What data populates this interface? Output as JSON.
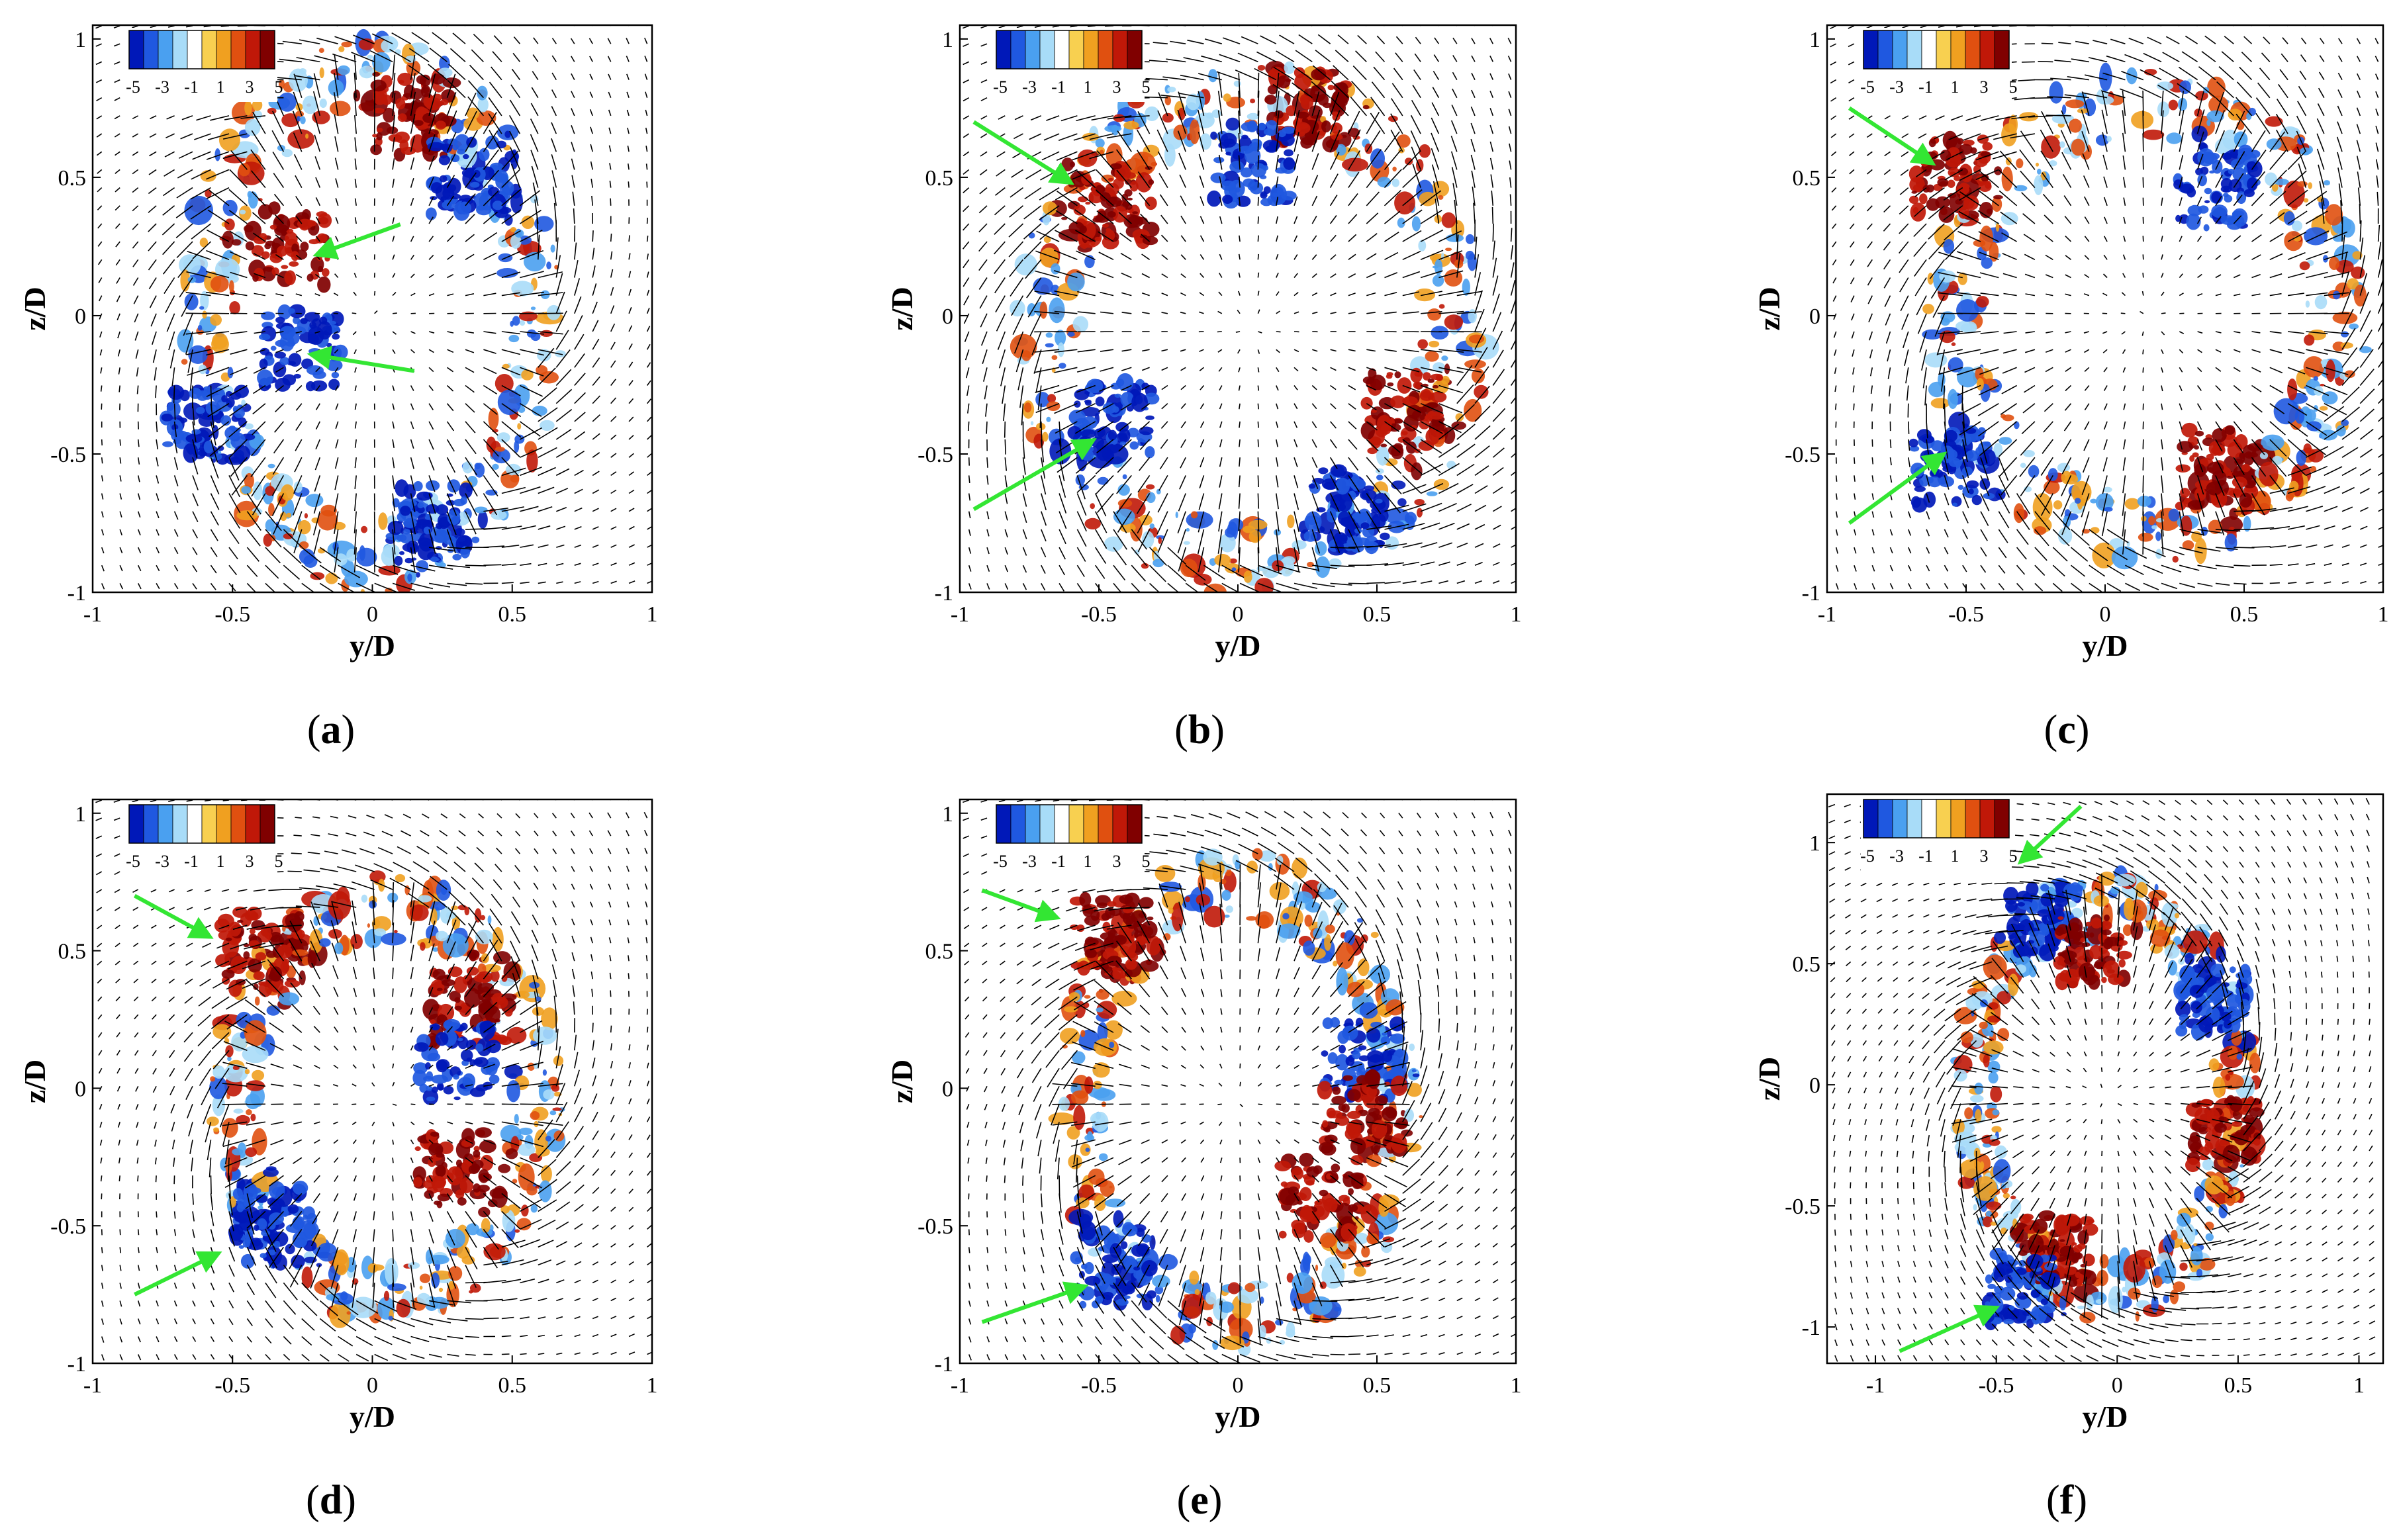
{
  "figure": {
    "colorbar": {
      "tick_labels": [
        "-5",
        "-3",
        "-1",
        "1",
        "3",
        "5"
      ],
      "colors": [
        "#0018b8",
        "#1f58e0",
        "#4aa0f0",
        "#a8dcf8",
        "#ffffff",
        "#f8d050",
        "#f0a020",
        "#e05010",
        "#c01808",
        "#800000"
      ]
    },
    "arrow_color": "#33e633",
    "vector_color": "#000000",
    "axis_labels": {
      "x": "y/D",
      "y": "z/D"
    }
  },
  "chart_data": [
    {
      "panel": "a",
      "label_open": "(",
      "label_letter": "a",
      "label_close": ")",
      "type": "vector-contour",
      "xlabel": "y/D",
      "ylabel": "z/D",
      "xlim": [
        -1,
        1
      ],
      "ylim": [
        -1,
        1.05
      ],
      "xticks": [
        -1,
        -0.5,
        0,
        0.5,
        1
      ],
      "xtick_labels": [
        "-1",
        "-0.5",
        "0",
        "0.5",
        "1"
      ],
      "yticks": [
        -1,
        -0.5,
        0,
        0.5,
        1
      ],
      "ytick_labels": [
        "-1",
        "-0.5",
        "0",
        "0.5",
        "1"
      ],
      "ring": {
        "center": [
          0.0,
          0.0
        ],
        "radius": [
          0.6,
          0.88
        ]
      },
      "vortex_blobs": [
        {
          "y": -0.3,
          "z": 0.25,
          "sign": 1
        },
        {
          "y": -0.25,
          "z": -0.12,
          "sign": -1
        },
        {
          "y": 0.15,
          "z": 0.72,
          "sign": 1
        },
        {
          "y": 0.2,
          "z": -0.75,
          "sign": -1
        },
        {
          "y": -0.6,
          "z": -0.4,
          "sign": -1
        },
        {
          "y": 0.35,
          "z": 0.5,
          "sign": -1
        }
      ],
      "annotation_arrows": [
        {
          "from": [
            0.1,
            0.33
          ],
          "to": [
            -0.2,
            0.22
          ]
        },
        {
          "from": [
            0.15,
            -0.2
          ],
          "to": [
            -0.22,
            -0.14
          ]
        }
      ]
    },
    {
      "panel": "b",
      "label_open": "(",
      "label_letter": "b",
      "label_close": ")",
      "type": "vector-contour",
      "xlabel": "y/D",
      "ylabel": "z/D",
      "xlim": [
        -1,
        1
      ],
      "ylim": [
        -1,
        1.05
      ],
      "xticks": [
        -1,
        -0.5,
        0,
        0.5,
        1
      ],
      "xtick_labels": [
        "-1",
        "-0.5",
        "0",
        "0.5",
        "1"
      ],
      "yticks": [
        -1,
        -0.5,
        0,
        0.5,
        1
      ],
      "ytick_labels": [
        "-1",
        "-0.5",
        "0",
        "0.5",
        "1"
      ],
      "ring": {
        "center": [
          0.05,
          -0.05
        ],
        "radius": [
          0.75,
          0.85
        ]
      },
      "vortex_blobs": [
        {
          "y": -0.45,
          "z": 0.4,
          "sign": 1
        },
        {
          "y": -0.45,
          "z": -0.38,
          "sign": -1
        },
        {
          "y": 0.25,
          "z": 0.75,
          "sign": 1
        },
        {
          "y": 0.4,
          "z": -0.7,
          "sign": -1
        },
        {
          "y": 0.05,
          "z": 0.55,
          "sign": -1
        },
        {
          "y": 0.6,
          "z": -0.35,
          "sign": 1
        }
      ],
      "annotation_arrows": [
        {
          "from": [
            -0.95,
            0.7
          ],
          "to": [
            -0.6,
            0.48
          ]
        },
        {
          "from": [
            -0.95,
            -0.7
          ],
          "to": [
            -0.52,
            -0.45
          ]
        }
      ]
    },
    {
      "panel": "c",
      "label_open": "(",
      "label_letter": "c",
      "label_close": ")",
      "type": "vector-contour",
      "xlabel": "y/D",
      "ylabel": "z/D",
      "xlim": [
        -1,
        1
      ],
      "ylim": [
        -1,
        1.05
      ],
      "xticks": [
        -1,
        -0.5,
        0,
        0.5,
        1
      ],
      "xtick_labels": [
        "-1",
        "-0.5",
        "0",
        "0.5",
        "1"
      ],
      "yticks": [
        -1,
        -0.5,
        0,
        0.5,
        1
      ],
      "ytick_labels": [
        "-1",
        "-0.5",
        "0",
        "0.5",
        "1"
      ],
      "ring": {
        "center": [
          0.15,
          0.0
        ],
        "radius": [
          0.7,
          0.78
        ]
      },
      "vortex_blobs": [
        {
          "y": -0.55,
          "z": 0.5,
          "sign": 1
        },
        {
          "y": -0.55,
          "z": -0.55,
          "sign": -1
        },
        {
          "y": 0.4,
          "z": 0.45,
          "sign": -1
        },
        {
          "y": 0.4,
          "z": -0.55,
          "sign": 1
        }
      ],
      "annotation_arrows": [
        {
          "from": [
            -0.92,
            0.75
          ],
          "to": [
            -0.62,
            0.55
          ]
        },
        {
          "from": [
            -0.92,
            -0.75
          ],
          "to": [
            -0.58,
            -0.5
          ]
        }
      ]
    },
    {
      "panel": "d",
      "label_open": "(",
      "label_letter": "d",
      "label_close": ")",
      "type": "vector-contour",
      "xlabel": "y/D",
      "ylabel": "z/D",
      "xlim": [
        -1,
        1
      ],
      "ylim": [
        -1,
        1.05
      ],
      "xticks": [
        -1,
        -0.5,
        0,
        0.5,
        1
      ],
      "xtick_labels": [
        "-1",
        "-0.5",
        "0",
        "0.5",
        "1"
      ],
      "yticks": [
        -1,
        -0.5,
        0,
        0.5,
        1
      ],
      "ytick_labels": [
        "-1",
        "-0.5",
        "0",
        "0.5",
        "1"
      ],
      "ring": {
        "center": [
          0.05,
          -0.05
        ],
        "radius": [
          0.55,
          0.72
        ]
      },
      "vortex_blobs": [
        {
          "y": -0.4,
          "z": 0.5,
          "sign": 1
        },
        {
          "y": -0.35,
          "z": -0.5,
          "sign": -1
        },
        {
          "y": 0.35,
          "z": 0.3,
          "sign": 1
        },
        {
          "y": 0.3,
          "z": -0.3,
          "sign": 1
        },
        {
          "y": 0.3,
          "z": 0.1,
          "sign": -1
        }
      ],
      "annotation_arrows": [
        {
          "from": [
            -0.85,
            0.7
          ],
          "to": [
            -0.58,
            0.55
          ]
        },
        {
          "from": [
            -0.85,
            -0.75
          ],
          "to": [
            -0.55,
            -0.6
          ]
        }
      ]
    },
    {
      "panel": "e",
      "label_open": "(",
      "label_letter": "e",
      "label_close": ")",
      "type": "vector-contour",
      "xlabel": "y/D",
      "ylabel": "z/D",
      "xlim": [
        -1,
        1
      ],
      "ylim": [
        -1,
        1.05
      ],
      "xticks": [
        -1,
        -0.5,
        0,
        0.5,
        1
      ],
      "xtick_labels": [
        "-1",
        "-0.5",
        "0",
        "0.5",
        "1"
      ],
      "yticks": [
        -1,
        -0.5,
        0,
        0.5,
        1
      ],
      "ytick_labels": [
        "-1",
        "-0.5",
        "0",
        "0.5",
        "1"
      ],
      "ring": {
        "center": [
          0.0,
          -0.05
        ],
        "radius": [
          0.58,
          0.8
        ]
      },
      "vortex_blobs": [
        {
          "y": -0.45,
          "z": 0.55,
          "sign": 1
        },
        {
          "y": -0.45,
          "z": -0.65,
          "sign": -1
        },
        {
          "y": 0.45,
          "z": 0.1,
          "sign": -1
        },
        {
          "y": 0.3,
          "z": -0.4,
          "sign": 1
        },
        {
          "y": 0.45,
          "z": -0.1,
          "sign": 1
        }
      ],
      "annotation_arrows": [
        {
          "from": [
            -0.92,
            0.72
          ],
          "to": [
            -0.65,
            0.62
          ]
        },
        {
          "from": [
            -0.92,
            -0.85
          ],
          "to": [
            -0.55,
            -0.72
          ]
        }
      ]
    },
    {
      "panel": "f",
      "label_open": "(",
      "label_letter": "f",
      "label_close": ")",
      "type": "vector-contour",
      "xlabel": "y/D",
      "ylabel": "z/D",
      "xlim": [
        -1.2,
        1.1
      ],
      "ylim": [
        -1.15,
        1.2
      ],
      "xticks": [
        -1,
        -0.5,
        0,
        0.5,
        1
      ],
      "xtick_labels": [
        "-1",
        "-0.5",
        "0",
        "0.5",
        "1"
      ],
      "yticks": [
        -1,
        -0.5,
        0,
        0.5,
        1
      ],
      "ytick_labels": [
        "-1",
        "-0.5",
        "0",
        "0.5",
        "1"
      ],
      "ring": {
        "center": [
          -0.05,
          -0.05
        ],
        "radius": [
          0.55,
          0.82
        ]
      },
      "vortex_blobs": [
        {
          "y": -0.3,
          "z": 0.68,
          "sign": -1
        },
        {
          "y": -0.25,
          "z": -0.68,
          "sign": 1
        },
        {
          "y": -0.1,
          "z": 0.55,
          "sign": 1
        },
        {
          "y": -0.4,
          "z": -0.85,
          "sign": -1
        },
        {
          "y": 0.4,
          "z": 0.35,
          "sign": -1
        },
        {
          "y": 0.45,
          "z": -0.2,
          "sign": 1
        }
      ],
      "annotation_arrows": [
        {
          "from": [
            -0.15,
            1.15
          ],
          "to": [
            -0.4,
            0.92
          ]
        },
        {
          "from": [
            -0.9,
            -1.1
          ],
          "to": [
            -0.5,
            -0.92
          ]
        }
      ]
    }
  ]
}
